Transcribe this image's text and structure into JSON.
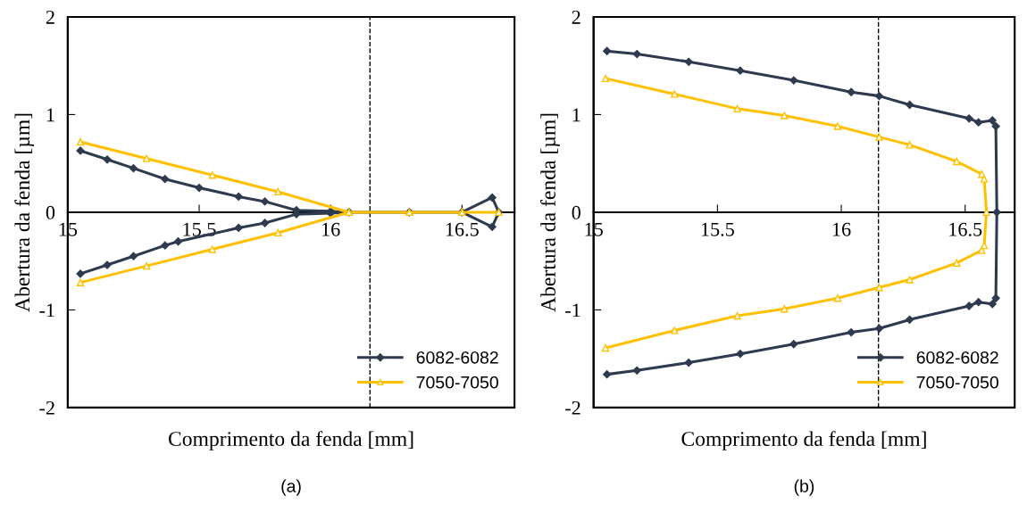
{
  "chart_data": [
    {
      "type": "line",
      "xlabel": "Comprimento da fenda [mm]",
      "ylabel": "Abertura da fenda [µm]",
      "xlim": [
        15,
        16.7
      ],
      "ylim": [
        -2,
        2
      ],
      "xticks": [
        15,
        15.5,
        16,
        16.5
      ],
      "yticks": [
        -2,
        -1,
        0,
        1,
        2
      ],
      "legend": "bottom right",
      "line_style": "solid",
      "ref_lines": [
        {
          "axis": "x",
          "value": 16.15,
          "color": "#000000",
          "line_style": "dashed"
        }
      ],
      "annotations": [
        "(a)"
      ],
      "series": [
        {
          "name": "6082-6082",
          "color": "#2e3a4e",
          "marker": "diamond",
          "x": [
            15.048,
            15.15,
            15.25,
            15.37,
            15.5,
            15.65,
            15.75,
            15.87,
            16.0,
            16.07,
            16.3,
            16.5,
            16.615,
            16.64,
            16.615,
            16.5,
            16.3,
            16.07,
            16.0,
            15.87,
            15.75,
            15.65,
            15.42,
            15.37,
            15.25,
            15.15,
            15.048
          ],
          "values": [
            0.63,
            0.54,
            0.45,
            0.34,
            0.25,
            0.16,
            0.11,
            0.02,
            0.01,
            0,
            0,
            0,
            0.15,
            0,
            -0.15,
            0,
            0,
            0,
            -0.01,
            -0.02,
            -0.11,
            -0.16,
            -0.3,
            -0.34,
            -0.45,
            -0.54,
            -0.63
          ]
        },
        {
          "name": "7050-7050",
          "color": "#ffc000",
          "marker": "triangle",
          "x": [
            15.048,
            15.3,
            15.55,
            15.8,
            16.07,
            16.3,
            16.5,
            16.64,
            16.5,
            16.3,
            16.07,
            15.8,
            15.55,
            15.3,
            15.048
          ],
          "values": [
            0.72,
            0.55,
            0.38,
            0.21,
            0,
            0,
            0,
            0,
            0,
            0,
            0,
            -0.21,
            -0.38,
            -0.55,
            -0.72
          ]
        }
      ]
    },
    {
      "type": "line",
      "xlabel": "Comprimento da fenda [mm]",
      "ylabel": "Abertura da fenda [µm]",
      "xlim": [
        15,
        16.7
      ],
      "ylim": [
        -2,
        2
      ],
      "xticks": [
        15,
        15.5,
        16,
        16.5
      ],
      "yticks": [
        -2,
        -1,
        0,
        1,
        2
      ],
      "legend": "bottom right",
      "line_style": "solid",
      "ref_lines": [
        {
          "axis": "x",
          "value": 16.15,
          "color": "#000000",
          "line_style": "dashed"
        }
      ],
      "annotations": [
        "(b)"
      ],
      "series": [
        {
          "name": "6082-6082",
          "color": "#2e3a4e",
          "marker": "diamond",
          "x": [
            15.054,
            15.175,
            15.384,
            15.592,
            15.808,
            16.04,
            16.153,
            16.276,
            16.516,
            16.554,
            16.61,
            16.624,
            16.628,
            16.624,
            16.61,
            16.554,
            16.516,
            16.276,
            16.153,
            16.04,
            15.808,
            15.592,
            15.384,
            15.175,
            15.054
          ],
          "values": [
            1.65,
            1.62,
            1.54,
            1.45,
            1.35,
            1.23,
            1.19,
            1.1,
            0.96,
            0.92,
            0.94,
            0.88,
            0,
            -0.88,
            -0.94,
            -0.92,
            -0.96,
            -1.1,
            -1.19,
            -1.23,
            -1.35,
            -1.45,
            -1.54,
            -1.62,
            -1.66
          ]
        },
        {
          "name": "7050-7050",
          "color": "#ffc000",
          "marker": "triangle",
          "x": [
            15.048,
            15.327,
            15.58,
            15.77,
            15.985,
            16.153,
            16.276,
            16.466,
            16.567,
            16.577,
            16.586,
            16.577,
            16.567,
            16.466,
            16.276,
            16.153,
            15.985,
            15.77,
            15.58,
            15.327,
            15.048
          ],
          "values": [
            1.37,
            1.21,
            1.06,
            0.99,
            0.88,
            0.77,
            0.69,
            0.52,
            0.39,
            0.34,
            0,
            -0.34,
            -0.39,
            -0.52,
            -0.69,
            -0.77,
            -0.88,
            -0.99,
            -1.06,
            -1.21,
            -1.39
          ]
        }
      ]
    }
  ]
}
